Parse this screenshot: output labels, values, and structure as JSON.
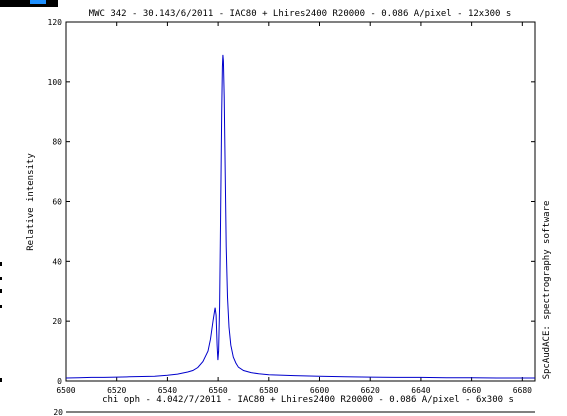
{
  "chart_data": {
    "type": "line",
    "title": "MWC 342 - 30.143/6/2011 - IAC80 + Lhires2400 R20000 - 0.086 A/pixel - 12x300 s",
    "ylabel": "Relative intensity",
    "xlabel": "",
    "side_label": "SpcAudACE: spectrography software",
    "xlim": [
      6500,
      6685
    ],
    "ylim": [
      0,
      120
    ],
    "x_ticks": [
      6500,
      6520,
      6540,
      6560,
      6580,
      6600,
      6620,
      6640,
      6660,
      6680
    ],
    "y_ticks": [
      0,
      20,
      40,
      60,
      80,
      100,
      120
    ],
    "grid": false,
    "series": [
      {
        "color": "#0000cc",
        "points": [
          [
            6500,
            1.0
          ],
          [
            6505,
            1.1
          ],
          [
            6510,
            1.2
          ],
          [
            6515,
            1.2
          ],
          [
            6520,
            1.3
          ],
          [
            6525,
            1.4
          ],
          [
            6530,
            1.5
          ],
          [
            6535,
            1.6
          ],
          [
            6540,
            1.9
          ],
          [
            6544,
            2.3
          ],
          [
            6548,
            3.0
          ],
          [
            6550,
            3.5
          ],
          [
            6552,
            4.5
          ],
          [
            6554,
            6.5
          ],
          [
            6556,
            10
          ],
          [
            6557,
            14
          ],
          [
            6558,
            20
          ],
          [
            6558.8,
            24.5
          ],
          [
            6559.2,
            22
          ],
          [
            6559.6,
            12
          ],
          [
            6559.9,
            7
          ],
          [
            6560.2,
            10
          ],
          [
            6560.6,
            25
          ],
          [
            6561.0,
            55
          ],
          [
            6561.4,
            90
          ],
          [
            6561.7,
            105
          ],
          [
            6561.9,
            109
          ],
          [
            6562.1,
            107
          ],
          [
            6562.4,
            95
          ],
          [
            6562.8,
            70
          ],
          [
            6563.2,
            45
          ],
          [
            6563.7,
            28
          ],
          [
            6564.3,
            18
          ],
          [
            6565,
            12
          ],
          [
            6566,
            8
          ],
          [
            6567,
            6
          ],
          [
            6568,
            4.6
          ],
          [
            6570,
            3.5
          ],
          [
            6573,
            2.8
          ],
          [
            6576,
            2.4
          ],
          [
            6580,
            2.1
          ],
          [
            6590,
            1.8
          ],
          [
            6600,
            1.6
          ],
          [
            6610,
            1.4
          ],
          [
            6620,
            1.3
          ],
          [
            6630,
            1.2
          ],
          [
            6640,
            1.2
          ],
          [
            6650,
            1.1
          ],
          [
            6660,
            1.1
          ],
          [
            6670,
            1.0
          ],
          [
            6680,
            1.0
          ],
          [
            6685,
            1.0
          ]
        ]
      }
    ]
  },
  "second_plot": {
    "title": "chi oph - 4.042/7/2011 - IAC80 + Lhires2400 R20000 - 0.086 A/pixel - 6x300 s",
    "top_tick": "20"
  },
  "colors": {
    "line": "#0000cc",
    "axis": "#000000",
    "background": "#ffffff"
  }
}
